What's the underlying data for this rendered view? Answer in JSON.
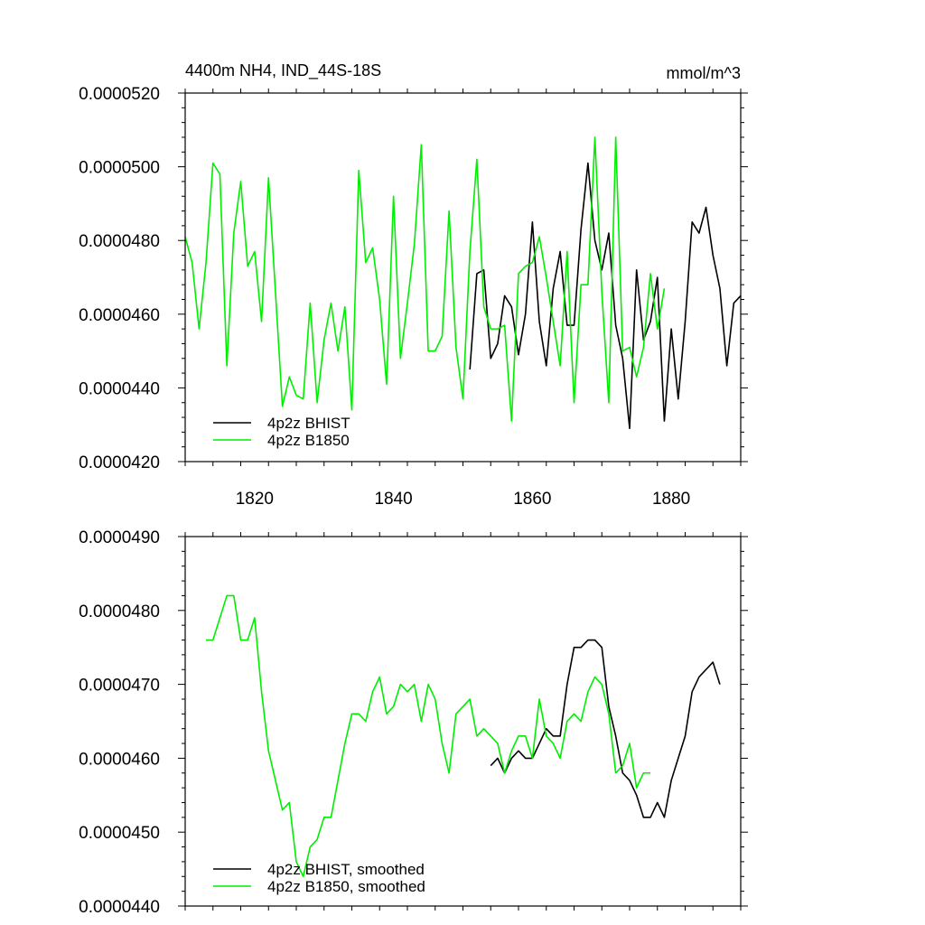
{
  "chart_data": [
    {
      "type": "line",
      "title": "4400m NH4, IND_44S-18S",
      "units": "mmol/m^3",
      "xlim": [
        1810,
        1890
      ],
      "ylim": [
        4.2e-05,
        5.2e-05
      ],
      "xticks": [
        1820,
        1840,
        1860,
        1880
      ],
      "xtick_labels": [
        "1820",
        "1840",
        "1860",
        "1880"
      ],
      "yticks": [
        4.2e-05,
        4.4e-05,
        4.6e-05,
        4.8e-05,
        5e-05,
        5.2e-05
      ],
      "ytick_labels": [
        "0.0000420",
        "0.0000440",
        "0.0000460",
        "0.0000480",
        "0.0000500",
        "0.0000520"
      ],
      "legend_position": "bottom-left",
      "series": [
        {
          "name": "4p2z BHIST",
          "color": "#000000",
          "x": [
            1851,
            1852,
            1853,
            1854,
            1855,
            1856,
            1857,
            1858,
            1859,
            1860,
            1861,
            1862,
            1863,
            1864,
            1865,
            1866,
            1867,
            1868,
            1869,
            1870,
            1871,
            1872,
            1873,
            1874,
            1875,
            1876,
            1877,
            1878,
            1879,
            1880,
            1881,
            1882,
            1883,
            1884,
            1885,
            1886,
            1887,
            1888,
            1889,
            1890
          ],
          "y": [
            4.45e-05,
            4.71e-05,
            4.72e-05,
            4.48e-05,
            4.52e-05,
            4.65e-05,
            4.62e-05,
            4.49e-05,
            4.6e-05,
            4.85e-05,
            4.58e-05,
            4.46e-05,
            4.67e-05,
            4.77e-05,
            4.57e-05,
            4.57e-05,
            4.83e-05,
            5.01e-05,
            4.8e-05,
            4.72e-05,
            4.82e-05,
            4.57e-05,
            4.48e-05,
            4.29e-05,
            4.72e-05,
            4.53e-05,
            4.58e-05,
            4.7e-05,
            4.31e-05,
            4.56e-05,
            4.37e-05,
            4.58e-05,
            4.85e-05,
            4.82e-05,
            4.89e-05,
            4.76e-05,
            4.67e-05,
            4.46e-05,
            4.63e-05,
            4.65e-05
          ]
        },
        {
          "name": "4p2z B1850",
          "color": "#00ee00",
          "x": [
            1810,
            1811,
            1812,
            1813,
            1814,
            1815,
            1816,
            1817,
            1818,
            1819,
            1820,
            1821,
            1822,
            1823,
            1824,
            1825,
            1826,
            1827,
            1828,
            1829,
            1830,
            1831,
            1832,
            1833,
            1834,
            1835,
            1836,
            1837,
            1838,
            1839,
            1840,
            1841,
            1842,
            1843,
            1844,
            1845,
            1846,
            1847,
            1848,
            1849,
            1850,
            1851,
            1852,
            1853,
            1854,
            1855,
            1856,
            1857,
            1858,
            1859,
            1860,
            1861,
            1862,
            1863,
            1864,
            1865,
            1866,
            1867,
            1868,
            1869,
            1870,
            1871,
            1872,
            1873,
            1874,
            1875,
            1876,
            1877,
            1878,
            1879
          ],
          "y": [
            4.81e-05,
            4.74e-05,
            4.56e-05,
            4.74e-05,
            5.01e-05,
            4.98e-05,
            4.46e-05,
            4.82e-05,
            4.96e-05,
            4.73e-05,
            4.77e-05,
            4.58e-05,
            4.97e-05,
            4.66e-05,
            4.35e-05,
            4.43e-05,
            4.38e-05,
            4.37e-05,
            4.63e-05,
            4.36e-05,
            4.53e-05,
            4.63e-05,
            4.5e-05,
            4.62e-05,
            4.34e-05,
            4.99e-05,
            4.74e-05,
            4.78e-05,
            4.64e-05,
            4.41e-05,
            4.92e-05,
            4.48e-05,
            4.63e-05,
            4.79e-05,
            5.06e-05,
            4.5e-05,
            4.5e-05,
            4.54e-05,
            4.88e-05,
            4.51e-05,
            4.37e-05,
            4.77e-05,
            5.02e-05,
            4.62e-05,
            4.56e-05,
            4.56e-05,
            4.57e-05,
            4.31e-05,
            4.71e-05,
            4.73e-05,
            4.74e-05,
            4.81e-05,
            4.7e-05,
            4.58e-05,
            4.46e-05,
            4.77e-05,
            4.36e-05,
            4.68e-05,
            4.68e-05,
            5.08e-05,
            4.66e-05,
            4.36e-05,
            5.08e-05,
            4.5e-05,
            4.51e-05,
            4.43e-05,
            4.51e-05,
            4.71e-05,
            4.56e-05,
            4.67e-05
          ]
        }
      ]
    },
    {
      "type": "line",
      "xlim": [
        1810,
        1890
      ],
      "ylim": [
        4.4e-05,
        4.9e-05
      ],
      "xticks": [
        1820,
        1840,
        1860,
        1880
      ],
      "yticks": [
        4.4e-05,
        4.5e-05,
        4.6e-05,
        4.7e-05,
        4.8e-05,
        4.9e-05
      ],
      "ytick_labels": [
        "0.0000440",
        "0.0000450",
        "0.0000460",
        "0.0000470",
        "0.0000480",
        "0.0000490"
      ],
      "legend_position": "bottom-left",
      "series": [
        {
          "name": "4p2z BHIST, smoothed",
          "color": "#000000",
          "x": [
            1854,
            1855,
            1856,
            1857,
            1858,
            1859,
            1860,
            1861,
            1862,
            1863,
            1864,
            1865,
            1866,
            1867,
            1868,
            1869,
            1870,
            1871,
            1872,
            1873,
            1874,
            1875,
            1876,
            1877,
            1878,
            1879,
            1880,
            1881,
            1882,
            1883,
            1884,
            1885,
            1886,
            1887
          ],
          "y": [
            4.59e-05,
            4.6e-05,
            4.58e-05,
            4.6e-05,
            4.61e-05,
            4.6e-05,
            4.6e-05,
            4.62e-05,
            4.64e-05,
            4.63e-05,
            4.63e-05,
            4.7e-05,
            4.75e-05,
            4.75e-05,
            4.76e-05,
            4.76e-05,
            4.75e-05,
            4.67e-05,
            4.63e-05,
            4.58e-05,
            4.57e-05,
            4.55e-05,
            4.52e-05,
            4.52e-05,
            4.54e-05,
            4.52e-05,
            4.57e-05,
            4.6e-05,
            4.63e-05,
            4.69e-05,
            4.71e-05,
            4.72e-05,
            4.73e-05,
            4.7e-05
          ]
        },
        {
          "name": "4p2z B1850, smoothed",
          "color": "#00ee00",
          "x": [
            1813,
            1814,
            1815,
            1816,
            1817,
            1818,
            1819,
            1820,
            1821,
            1822,
            1823,
            1824,
            1825,
            1826,
            1827,
            1828,
            1829,
            1830,
            1831,
            1832,
            1833,
            1834,
            1835,
            1836,
            1837,
            1838,
            1839,
            1840,
            1841,
            1842,
            1843,
            1844,
            1845,
            1846,
            1847,
            1848,
            1849,
            1850,
            1851,
            1852,
            1853,
            1854,
            1855,
            1856,
            1857,
            1858,
            1859,
            1860,
            1861,
            1862,
            1863,
            1864,
            1865,
            1866,
            1867,
            1868,
            1869,
            1870,
            1871,
            1872,
            1873,
            1874,
            1875,
            1876,
            1877
          ],
          "y": [
            4.76e-05,
            4.76e-05,
            4.79e-05,
            4.82e-05,
            4.82e-05,
            4.76e-05,
            4.76e-05,
            4.79e-05,
            4.69e-05,
            4.61e-05,
            4.57e-05,
            4.53e-05,
            4.54e-05,
            4.46e-05,
            4.44e-05,
            4.48e-05,
            4.49e-05,
            4.52e-05,
            4.52e-05,
            4.57e-05,
            4.62e-05,
            4.66e-05,
            4.66e-05,
            4.65e-05,
            4.69e-05,
            4.71e-05,
            4.66e-05,
            4.67e-05,
            4.7e-05,
            4.69e-05,
            4.7e-05,
            4.65e-05,
            4.7e-05,
            4.68e-05,
            4.62e-05,
            4.58e-05,
            4.66e-05,
            4.67e-05,
            4.68e-05,
            4.63e-05,
            4.64e-05,
            4.63e-05,
            4.62e-05,
            4.58e-05,
            4.61e-05,
            4.63e-05,
            4.63e-05,
            4.6e-05,
            4.68e-05,
            4.63e-05,
            4.62e-05,
            4.6e-05,
            4.65e-05,
            4.66e-05,
            4.65e-05,
            4.69e-05,
            4.71e-05,
            4.7e-05,
            4.66e-05,
            4.58e-05,
            4.59e-05,
            4.62e-05,
            4.56e-05,
            4.58e-05,
            4.58e-05
          ]
        }
      ]
    }
  ]
}
